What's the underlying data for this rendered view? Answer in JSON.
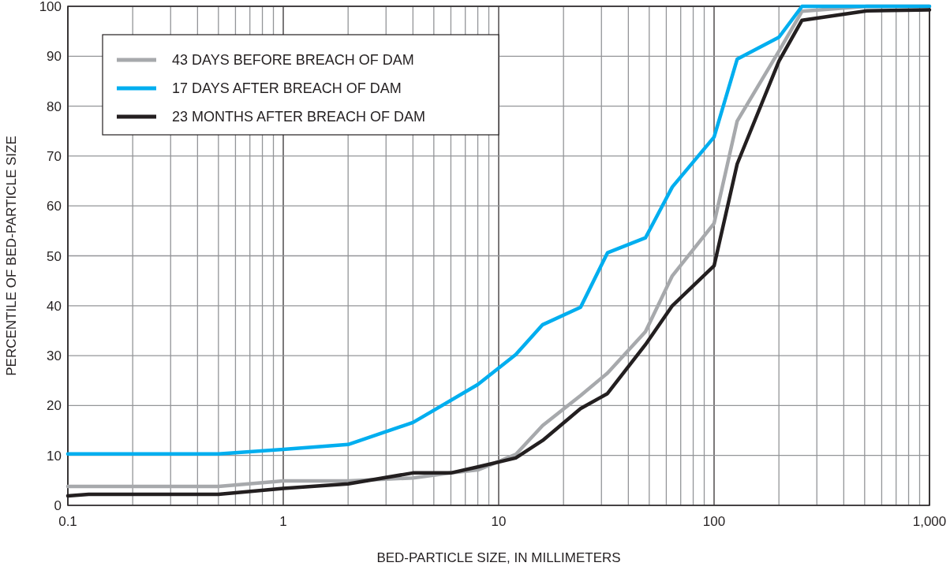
{
  "chart_data": {
    "type": "line",
    "xlabel": "BED-PARTICLE SIZE, IN MILLIMETERS",
    "ylabel": "PERCENTILE OF BED-PARTICLE SIZE",
    "log": "x",
    "xlim": [
      0.1,
      1000
    ],
    "ylim": [
      0,
      100
    ],
    "xticks": [
      0.1,
      {
        "value": 0.2,
        "label": null
      },
      {
        "value": 0.3,
        "label": null
      },
      {
        "value": 0.4,
        "label": null
      },
      {
        "value": 0.5,
        "label": null
      },
      {
        "value": 0.6,
        "label": null
      },
      {
        "value": 0.7,
        "label": null
      },
      {
        "value": 0.8,
        "label": null
      },
      {
        "value": 0.9,
        "label": null
      },
      1,
      {
        "value": 2,
        "label": null
      },
      {
        "value": 3,
        "label": null
      },
      {
        "value": 4,
        "label": null
      },
      {
        "value": 5,
        "label": null
      },
      {
        "value": 6,
        "label": null
      },
      {
        "value": 7,
        "label": null
      },
      {
        "value": 8,
        "label": null
      },
      {
        "value": 9,
        "label": null
      },
      10,
      {
        "value": 20,
        "label": null
      },
      {
        "value": 30,
        "label": null
      },
      {
        "value": 40,
        "label": null
      },
      {
        "value": 50,
        "label": null
      },
      {
        "value": 60,
        "label": null
      },
      {
        "value": 70,
        "label": null
      },
      {
        "value": 80,
        "label": null
      },
      {
        "value": 90,
        "label": null
      },
      100,
      {
        "value": 200,
        "label": null
      },
      {
        "value": 300,
        "label": null
      },
      {
        "value": 400,
        "label": null
      },
      {
        "value": 500,
        "label": null
      },
      {
        "value": 600,
        "label": null
      },
      {
        "value": 700,
        "label": null
      },
      {
        "value": 800,
        "label": null
      },
      {
        "value": 900,
        "label": null
      },
      {
        "value": 1000,
        "label": "1,000"
      }
    ],
    "yticks": [
      0,
      10,
      20,
      30,
      40,
      50,
      60,
      70,
      80,
      90,
      100
    ],
    "grid": true,
    "legend": "top left",
    "line_style": "solid",
    "marker": "none",
    "series": [
      {
        "name": "43 DAYS BEFORE BREACH OF DAM",
        "color": "#a7a9ac",
        "x": [
          0.1,
          0.5,
          1,
          2,
          4,
          6,
          8,
          10,
          12,
          16,
          24,
          32,
          48,
          64,
          100,
          128,
          200,
          256,
          512,
          1000
        ],
        "values": [
          3.8,
          3.8,
          4.9,
          4.9,
          5.5,
          6.5,
          7.1,
          8.8,
          10.2,
          16,
          22,
          26.5,
          34.8,
          46,
          56.5,
          77,
          91,
          99,
          100,
          100
        ]
      },
      {
        "name": "17 DAYS AFTER BREACH OF DAM",
        "color": "#00aeef",
        "x": [
          0.1,
          0.5,
          1,
          2,
          4,
          8,
          12,
          16,
          24,
          32,
          48,
          64,
          100,
          128,
          200,
          256,
          512,
          1000
        ],
        "values": [
          10.3,
          10.3,
          11.2,
          12.2,
          16.6,
          24.2,
          30.2,
          36.2,
          39.7,
          50.6,
          53.6,
          63.8,
          73.8,
          89.4,
          93.8,
          100,
          100,
          100
        ]
      },
      {
        "name": "23 MONTHS AFTER BREACH OF DAM",
        "color": "#231f20",
        "x": [
          0.1,
          0.125,
          0.5,
          1,
          2,
          4,
          6,
          8,
          12,
          16,
          24,
          32,
          48,
          64,
          100,
          128,
          200,
          256,
          512,
          1000
        ],
        "values": [
          1.9,
          2.2,
          2.2,
          3.4,
          4.3,
          6.5,
          6.5,
          7.7,
          9.5,
          13,
          19.4,
          22.4,
          32.2,
          40,
          48,
          68.4,
          89,
          97.2,
          99.1,
          99.3
        ]
      }
    ]
  }
}
